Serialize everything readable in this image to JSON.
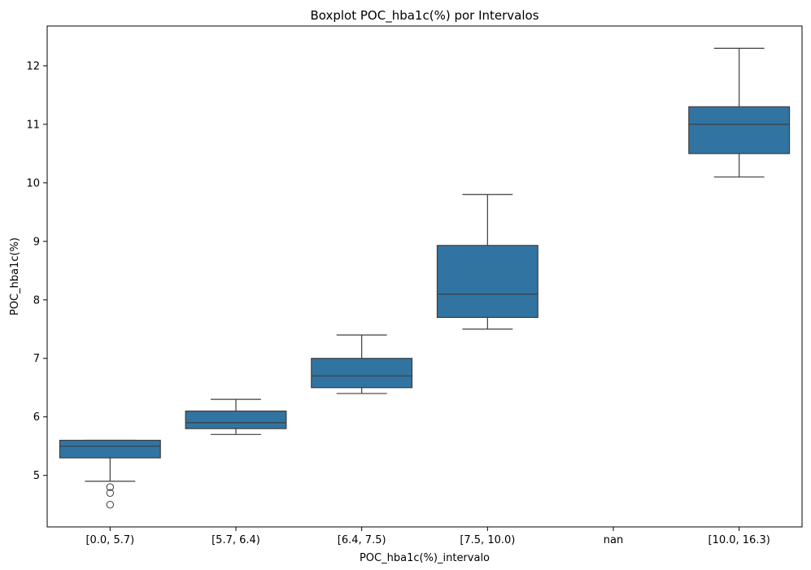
{
  "chart_data": {
    "type": "box",
    "title": "Boxplot POC_hba1c(%) por Intervalos",
    "xlabel": "POC_hba1c(%)_intervalo",
    "ylabel": "POC_hba1c(%)",
    "ylim": [
      4.12,
      12.68
    ],
    "yticks": [
      5,
      6,
      7,
      8,
      9,
      10,
      11,
      12
    ],
    "grid": false,
    "box_color": "#3274a1",
    "line_color": "#3d3d3d",
    "categories": [
      "[0.0, 5.7)",
      "[5.7, 6.4)",
      "[6.4, 7.5)",
      "[7.5, 10.0)",
      "nan",
      "[10.0, 16.3)"
    ],
    "boxes": [
      {
        "category": "[0.0, 5.7)",
        "whisker_low": 4.9,
        "q1": 5.3,
        "median": 5.5,
        "q3": 5.6,
        "whisker_high": 5.6,
        "outliers": [
          4.8,
          4.7,
          4.5
        ]
      },
      {
        "category": "[5.7, 6.4)",
        "whisker_low": 5.7,
        "q1": 5.8,
        "median": 5.9,
        "q3": 6.1,
        "whisker_high": 6.3,
        "outliers": []
      },
      {
        "category": "[6.4, 7.5)",
        "whisker_low": 6.4,
        "q1": 6.5,
        "median": 6.7,
        "q3": 7.0,
        "whisker_high": 7.4,
        "outliers": []
      },
      {
        "category": "[7.5, 10.0)",
        "whisker_low": 7.5,
        "q1": 7.7,
        "median": 8.1,
        "q3": 8.93,
        "whisker_high": 9.8,
        "outliers": []
      },
      {
        "category": "nan",
        "whisker_low": null,
        "q1": null,
        "median": null,
        "q3": null,
        "whisker_high": null,
        "outliers": []
      },
      {
        "category": "[10.0, 16.3)",
        "whisker_low": 10.1,
        "q1": 10.5,
        "median": 11.0,
        "q3": 11.3,
        "whisker_high": 12.3,
        "outliers": []
      }
    ]
  }
}
